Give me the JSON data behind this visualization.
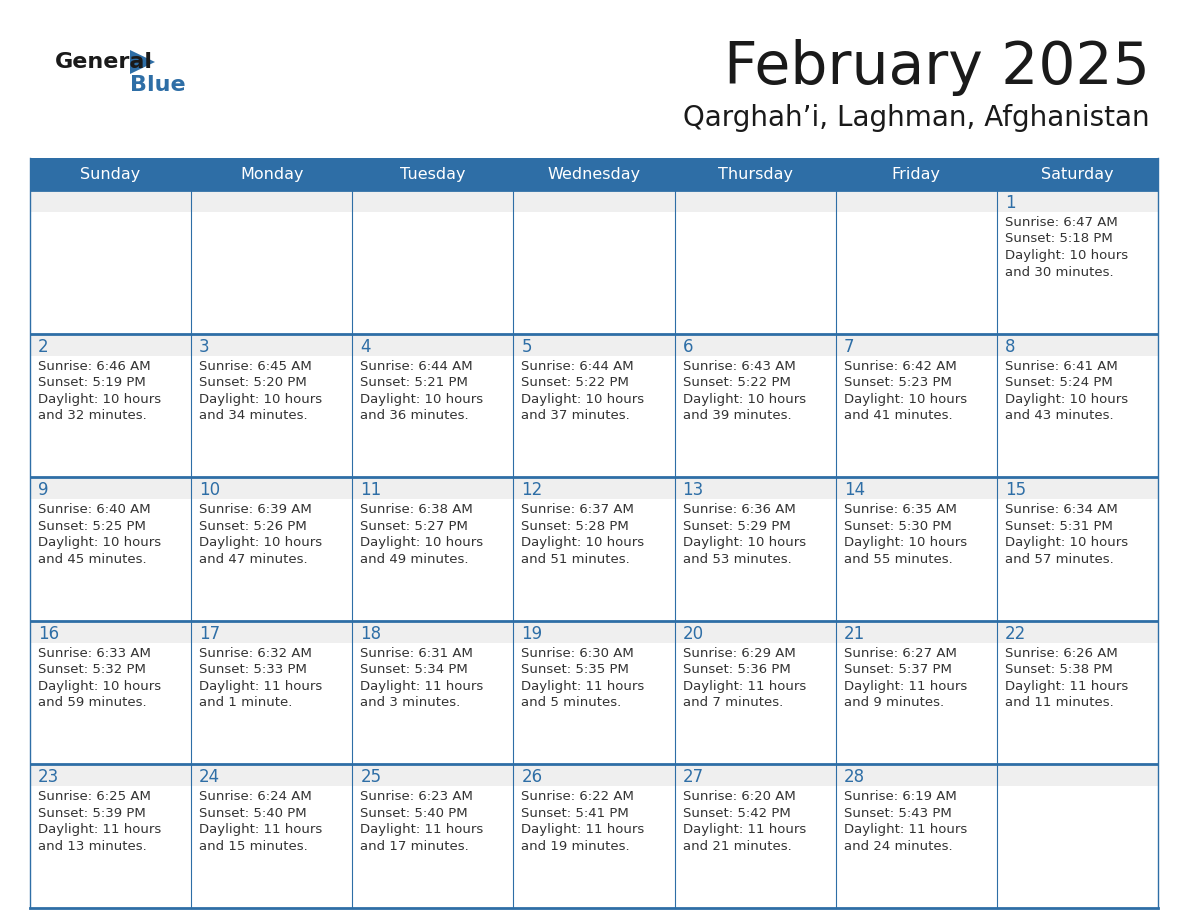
{
  "title": "February 2025",
  "subtitle": "Qarghah’i, Laghman, Afghanistan",
  "days_of_week": [
    "Sunday",
    "Monday",
    "Tuesday",
    "Wednesday",
    "Thursday",
    "Friday",
    "Saturday"
  ],
  "header_bg": "#2E6EA6",
  "header_text_color": "#FFFFFF",
  "cell_bg_gray": "#EFEFEF",
  "cell_bg_white": "#FFFFFF",
  "line_color": "#2E6EA6",
  "day_number_color": "#2E6EA6",
  "cell_text_color": "#333333",
  "title_color": "#1a1a1a",
  "subtitle_color": "#1a1a1a",
  "logo_general_color": "#1a1a1a",
  "logo_blue_color": "#2E6EA6",
  "calendar_data": [
    [
      null,
      null,
      null,
      null,
      null,
      null,
      {
        "day": 1,
        "sunrise": "6:47 AM",
        "sunset": "5:18 PM",
        "daylight1": "10 hours",
        "daylight2": "and 30 minutes."
      }
    ],
    [
      {
        "day": 2,
        "sunrise": "6:46 AM",
        "sunset": "5:19 PM",
        "daylight1": "10 hours",
        "daylight2": "and 32 minutes."
      },
      {
        "day": 3,
        "sunrise": "6:45 AM",
        "sunset": "5:20 PM",
        "daylight1": "10 hours",
        "daylight2": "and 34 minutes."
      },
      {
        "day": 4,
        "sunrise": "6:44 AM",
        "sunset": "5:21 PM",
        "daylight1": "10 hours",
        "daylight2": "and 36 minutes."
      },
      {
        "day": 5,
        "sunrise": "6:44 AM",
        "sunset": "5:22 PM",
        "daylight1": "10 hours",
        "daylight2": "and 37 minutes."
      },
      {
        "day": 6,
        "sunrise": "6:43 AM",
        "sunset": "5:22 PM",
        "daylight1": "10 hours",
        "daylight2": "and 39 minutes."
      },
      {
        "day": 7,
        "sunrise": "6:42 AM",
        "sunset": "5:23 PM",
        "daylight1": "10 hours",
        "daylight2": "and 41 minutes."
      },
      {
        "day": 8,
        "sunrise": "6:41 AM",
        "sunset": "5:24 PM",
        "daylight1": "10 hours",
        "daylight2": "and 43 minutes."
      }
    ],
    [
      {
        "day": 9,
        "sunrise": "6:40 AM",
        "sunset": "5:25 PM",
        "daylight1": "10 hours",
        "daylight2": "and 45 minutes."
      },
      {
        "day": 10,
        "sunrise": "6:39 AM",
        "sunset": "5:26 PM",
        "daylight1": "10 hours",
        "daylight2": "and 47 minutes."
      },
      {
        "day": 11,
        "sunrise": "6:38 AM",
        "sunset": "5:27 PM",
        "daylight1": "10 hours",
        "daylight2": "and 49 minutes."
      },
      {
        "day": 12,
        "sunrise": "6:37 AM",
        "sunset": "5:28 PM",
        "daylight1": "10 hours",
        "daylight2": "and 51 minutes."
      },
      {
        "day": 13,
        "sunrise": "6:36 AM",
        "sunset": "5:29 PM",
        "daylight1": "10 hours",
        "daylight2": "and 53 minutes."
      },
      {
        "day": 14,
        "sunrise": "6:35 AM",
        "sunset": "5:30 PM",
        "daylight1": "10 hours",
        "daylight2": "and 55 minutes."
      },
      {
        "day": 15,
        "sunrise": "6:34 AM",
        "sunset": "5:31 PM",
        "daylight1": "10 hours",
        "daylight2": "and 57 minutes."
      }
    ],
    [
      {
        "day": 16,
        "sunrise": "6:33 AM",
        "sunset": "5:32 PM",
        "daylight1": "10 hours",
        "daylight2": "and 59 minutes."
      },
      {
        "day": 17,
        "sunrise": "6:32 AM",
        "sunset": "5:33 PM",
        "daylight1": "11 hours",
        "daylight2": "and 1 minute."
      },
      {
        "day": 18,
        "sunrise": "6:31 AM",
        "sunset": "5:34 PM",
        "daylight1": "11 hours",
        "daylight2": "and 3 minutes."
      },
      {
        "day": 19,
        "sunrise": "6:30 AM",
        "sunset": "5:35 PM",
        "daylight1": "11 hours",
        "daylight2": "and 5 minutes."
      },
      {
        "day": 20,
        "sunrise": "6:29 AM",
        "sunset": "5:36 PM",
        "daylight1": "11 hours",
        "daylight2": "and 7 minutes."
      },
      {
        "day": 21,
        "sunrise": "6:27 AM",
        "sunset": "5:37 PM",
        "daylight1": "11 hours",
        "daylight2": "and 9 minutes."
      },
      {
        "day": 22,
        "sunrise": "6:26 AM",
        "sunset": "5:38 PM",
        "daylight1": "11 hours",
        "daylight2": "and 11 minutes."
      }
    ],
    [
      {
        "day": 23,
        "sunrise": "6:25 AM",
        "sunset": "5:39 PM",
        "daylight1": "11 hours",
        "daylight2": "and 13 minutes."
      },
      {
        "day": 24,
        "sunrise": "6:24 AM",
        "sunset": "5:40 PM",
        "daylight1": "11 hours",
        "daylight2": "and 15 minutes."
      },
      {
        "day": 25,
        "sunrise": "6:23 AM",
        "sunset": "5:40 PM",
        "daylight1": "11 hours",
        "daylight2": "and 17 minutes."
      },
      {
        "day": 26,
        "sunrise": "6:22 AM",
        "sunset": "5:41 PM",
        "daylight1": "11 hours",
        "daylight2": "and 19 minutes."
      },
      {
        "day": 27,
        "sunrise": "6:20 AM",
        "sunset": "5:42 PM",
        "daylight1": "11 hours",
        "daylight2": "and 21 minutes."
      },
      {
        "day": 28,
        "sunrise": "6:19 AM",
        "sunset": "5:43 PM",
        "daylight1": "11 hours",
        "daylight2": "and 24 minutes."
      },
      null
    ]
  ]
}
